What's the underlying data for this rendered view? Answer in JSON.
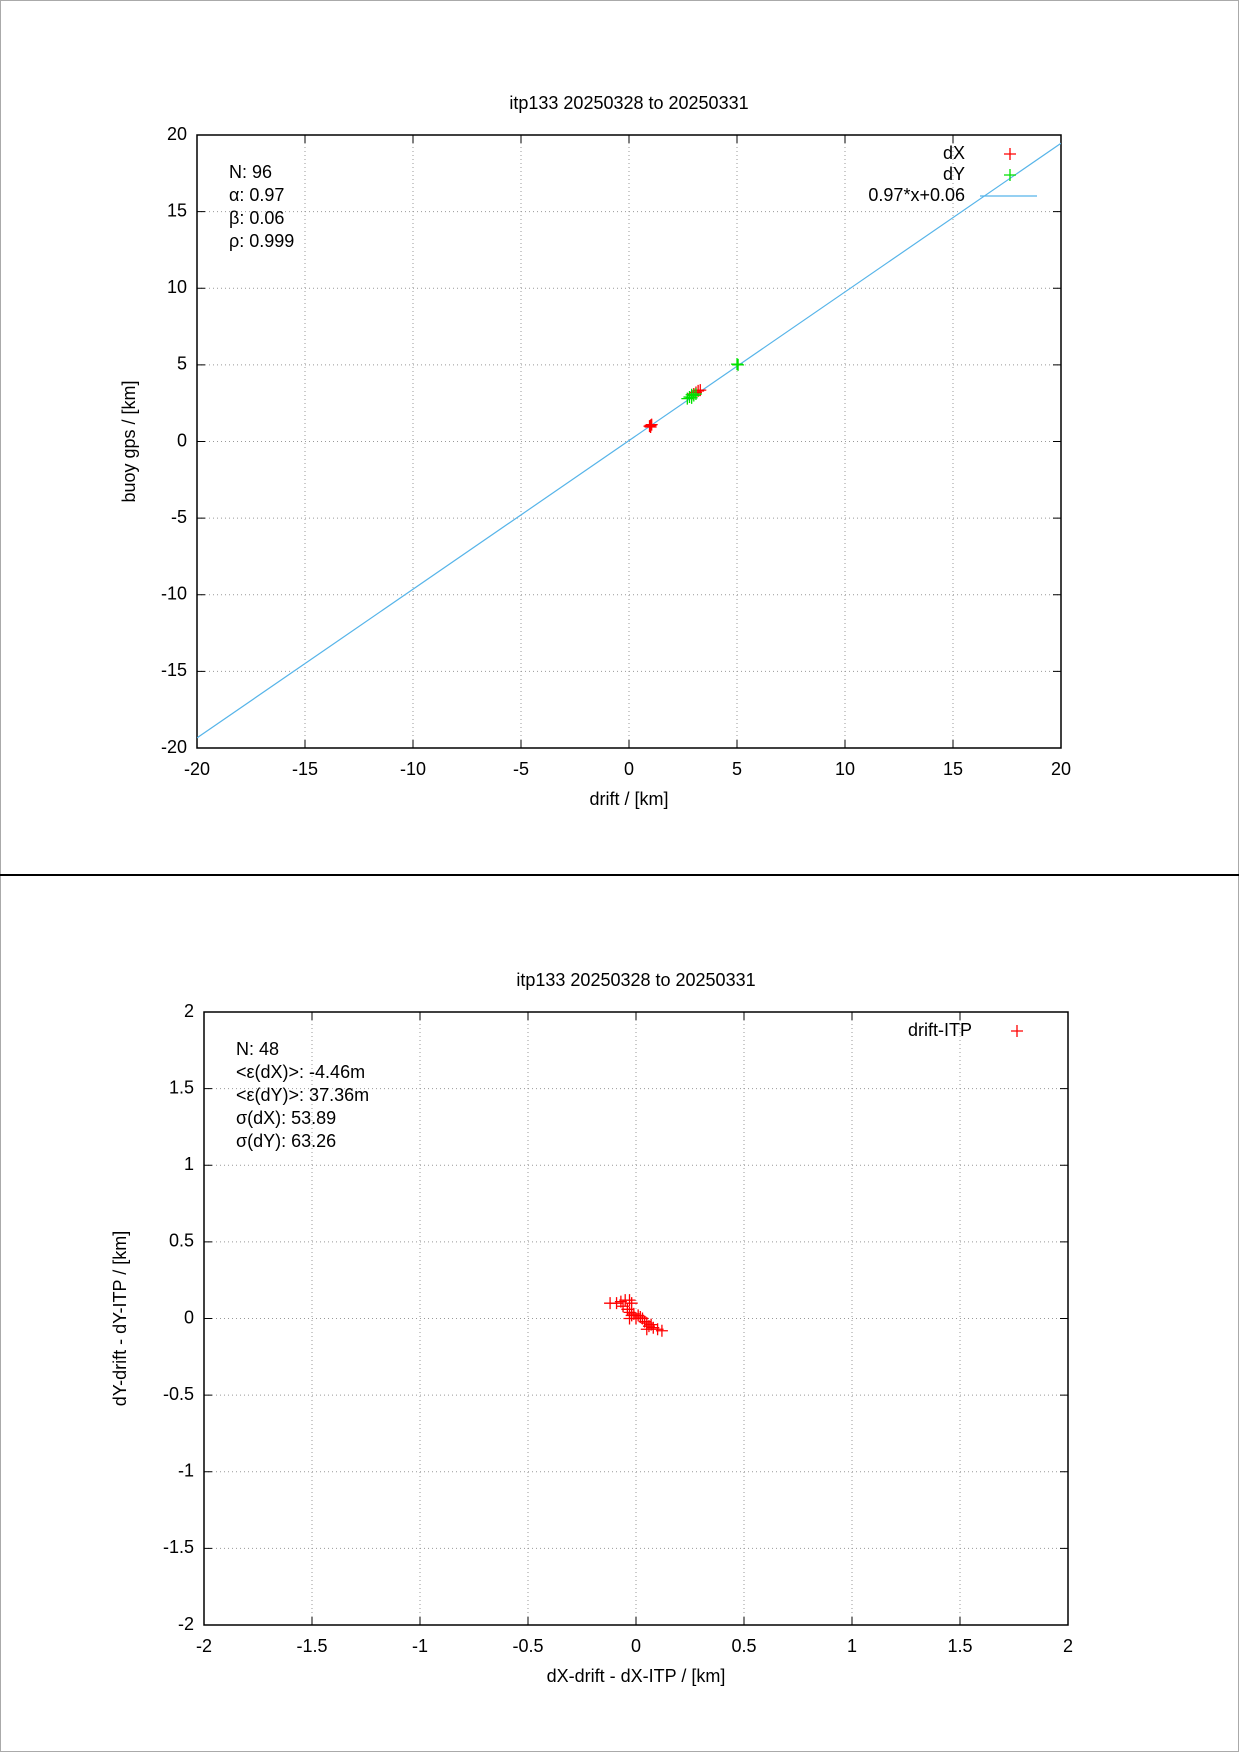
{
  "chart_data": [
    {
      "type": "scatter",
      "title": "itp133 20250328 to 20250331",
      "xlabel": "drift / [km]",
      "ylabel": "buoy gps / [km]",
      "xlim": [
        -20,
        20
      ],
      "ylim": [
        -20,
        20
      ],
      "xticks": [
        -20,
        -15,
        -10,
        -5,
        0,
        5,
        10,
        15,
        20
      ],
      "yticks": [
        -20,
        -15,
        -10,
        -5,
        0,
        5,
        10,
        15,
        20
      ],
      "grid": true,
      "legend": "top-right",
      "annotations": [
        "N: 96",
        "α: 0.97",
        "β: 0.06",
        "ρ: 0.999"
      ],
      "series": [
        {
          "name": "dX",
          "color": "#ff0000",
          "x": [
            1.0,
            0.95,
            1.05,
            1.0,
            3.1,
            3.3,
            3.2,
            3.0
          ],
          "values": [
            1.05,
            1.0,
            1.1,
            0.95,
            3.2,
            3.35,
            3.3,
            3.1
          ]
        },
        {
          "name": "dY",
          "color": "#00e000",
          "x": [
            2.7,
            2.8,
            2.9,
            3.0,
            3.1,
            2.9,
            5.0,
            5.05
          ],
          "values": [
            2.8,
            2.9,
            2.85,
            3.0,
            3.1,
            3.05,
            5.05,
            5.0
          ]
        }
      ],
      "fit": {
        "name": "0.97*x+0.06",
        "color": "#56b4e9",
        "slope": 0.97,
        "intercept": 0.06
      }
    },
    {
      "type": "scatter",
      "title": "itp133 20250328 to 20250331",
      "xlabel": "dX-drift - dX-ITP / [km]",
      "ylabel": "dY-drift - dY-ITP / [km]",
      "xlim": [
        -2,
        2
      ],
      "ylim": [
        -2,
        2
      ],
      "xticks": [
        -2,
        -1.5,
        -1,
        -0.5,
        0,
        0.5,
        1,
        1.5,
        2
      ],
      "yticks": [
        -2,
        -1.5,
        -1,
        -0.5,
        0,
        0.5,
        1,
        1.5,
        2
      ],
      "grid": true,
      "legend": "top-right",
      "annotations": [
        "N: 48",
        "<ε(dX)>:  -4.46m",
        "<ε(dY)>: 37.36m",
        "σ(dX):  53.89",
        "σ(dY):  63.26"
      ],
      "series": [
        {
          "name": "drift-ITP",
          "color": "#ff0000",
          "x": [
            -0.12,
            -0.09,
            -0.07,
            -0.05,
            -0.03,
            -0.02,
            -0.06,
            -0.04,
            -0.03,
            -0.02,
            -0.01,
            0.0,
            0.01,
            0.02,
            0.03,
            0.04,
            0.05,
            0.06,
            0.07,
            0.08,
            0.1,
            0.12,
            0.05,
            -0.03
          ],
          "values": [
            0.1,
            0.1,
            0.11,
            0.12,
            0.12,
            0.1,
            0.08,
            0.06,
            0.04,
            0.02,
            0.03,
            0.0,
            0.02,
            0.01,
            0.0,
            -0.02,
            -0.03,
            -0.05,
            -0.04,
            -0.06,
            -0.07,
            -0.08,
            -0.07,
            0.0
          ]
        }
      ]
    }
  ]
}
